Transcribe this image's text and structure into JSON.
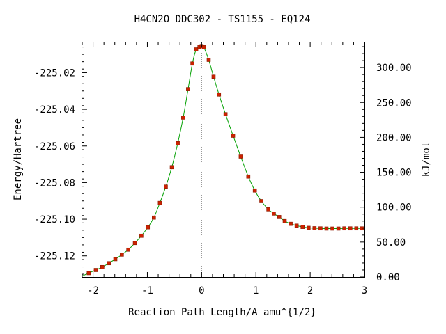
{
  "chart_data": {
    "type": "scatter",
    "title": "H4CN2O   DDC302 - TS1155 - EQ124",
    "xlabel": "Reaction Path Length/A amu^{1/2}",
    "ylabel": "Energy/Hartree",
    "ylabel_right": "kJ/mol",
    "xlim": [
      -2.2,
      3.0
    ],
    "ylim": [
      -225.1315,
      -225.0035
    ],
    "ylim_right": [
      0,
      336
    ],
    "x_ticks": [
      -2,
      -1,
      0,
      1,
      2,
      3
    ],
    "x_tick_labels": [
      "-2",
      "-1",
      "0",
      "1",
      "2",
      "3"
    ],
    "y_ticks": [
      -225.02,
      -225.04,
      -225.06,
      -225.08,
      -225.1,
      -225.12
    ],
    "y_tick_labels": [
      "-225.02",
      "-225.04",
      "-225.06",
      "-225.08",
      "-225.10",
      "-225.12"
    ],
    "y_right_ticks": [
      300,
      250,
      200,
      150,
      100,
      50,
      0
    ],
    "y_right_tick_labels": [
      "300.00",
      "250.00",
      "200.00",
      "150.00",
      "100.00",
      "50.00",
      "0.00"
    ],
    "ts_marker_x": 0,
    "grid": false,
    "legend": "none",
    "colors": {
      "curve": "#00a000",
      "points": "#cc2200",
      "ts_line": "#888888",
      "axes": "#000000"
    },
    "series": [
      {
        "x": [
          -2.08,
          -1.95,
          -1.83,
          -1.71,
          -1.59,
          -1.47,
          -1.35,
          -1.23,
          -1.11,
          -0.99,
          -0.88,
          -0.77,
          -0.66,
          -0.55,
          -0.44,
          -0.34,
          -0.25,
          -0.17,
          -0.1,
          -0.04,
          0.0,
          0.04,
          0.13,
          0.22,
          0.32,
          0.44,
          0.58,
          0.72,
          0.86,
          0.98,
          1.1,
          1.23,
          1.33,
          1.43,
          1.53,
          1.64,
          1.75,
          1.86,
          1.97,
          2.08,
          2.19,
          2.3,
          2.41,
          2.52,
          2.63,
          2.74,
          2.85,
          2.95
        ],
        "y": [
          -225.1294,
          -225.1277,
          -225.1261,
          -225.124,
          -225.1218,
          -225.1193,
          -225.1166,
          -225.113,
          -225.109,
          -225.1044,
          -225.0991,
          -225.0911,
          -225.0822,
          -225.0716,
          -225.0585,
          -225.0445,
          -225.029,
          -225.015,
          -225.0073,
          -225.006,
          -225.0055,
          -225.0061,
          -225.013,
          -225.0222,
          -225.0319,
          -225.0427,
          -225.0544,
          -225.0658,
          -225.0767,
          -225.0843,
          -225.0901,
          -225.0946,
          -225.0969,
          -225.0988,
          -225.101,
          -225.1025,
          -225.1035,
          -225.1042,
          -225.1047,
          -225.1049,
          -225.105,
          -225.1051,
          -225.1051,
          -225.1051,
          -225.105,
          -225.105,
          -225.105,
          -225.105
        ]
      }
    ]
  }
}
